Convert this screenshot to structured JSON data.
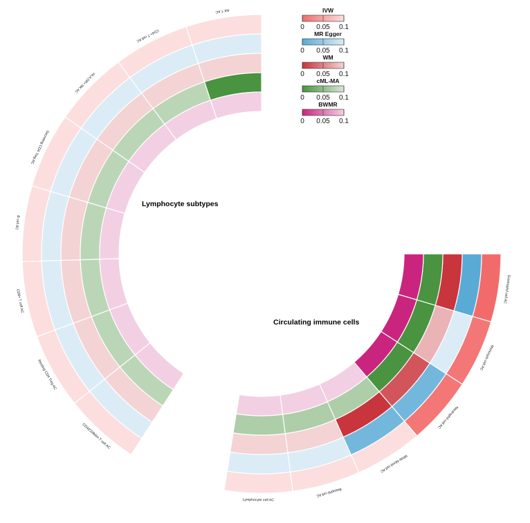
{
  "chart_data": {
    "type": "circular-heatmap",
    "tracks": [
      "IVW",
      "MR Egger",
      "WM",
      "cML-MA",
      "BWMR"
    ],
    "scale": {
      "min": 0,
      "max": 0.1,
      "ticks": [
        "0",
        "0.05",
        "0.1"
      ]
    },
    "colors": {
      "IVW": "#f26b6b",
      "MR Egger": "#5aaad6",
      "WM": "#c8353d",
      "cML-MA": "#4a9340",
      "BWMR": "#c9257e"
    },
    "groups": [
      {
        "name": "Lymphocyte subtypes",
        "cells": [
          "NK T AC",
          "CD4+ T cell AC",
          "HLA DR+ NK AC",
          "Secreting CD4 Treg AC",
          "B cell AC",
          "CD8+ T cell AC",
          "Resting CD4 Treg AC",
          "CD4/CD8dim T cell AC"
        ],
        "p_values": {
          "IVW": [
            0.1,
            0.1,
            0.1,
            0.1,
            0.1,
            0.1,
            0.1,
            0.1
          ],
          "MR Egger": [
            0.1,
            0.1,
            0.1,
            0.1,
            0.1,
            0.1,
            0.1,
            0.1
          ],
          "WM": [
            0.1,
            0.1,
            0.1,
            0.1,
            0.1,
            0.1,
            0.1,
            0.1
          ],
          "cML-MA": [
            0.0,
            0.08,
            0.08,
            0.08,
            0.08,
            0.08,
            0.08,
            0.08
          ],
          "BWMR": [
            0.1,
            0.1,
            0.1,
            0.1,
            0.1,
            0.1,
            0.1,
            0.1
          ]
        }
      },
      {
        "name": "Circulating immune cells",
        "cells": [
          "Eosinophil cell AC",
          "Monocyte cell AC",
          "Neutrophil cell AC",
          "White blood cell AC",
          "Basophil cell AC",
          "Lymphocyte cell AC"
        ],
        "p_values": {
          "IVW": [
            0.0,
            0.01,
            0.01,
            0.1,
            0.1,
            0.1
          ],
          "MR Egger": [
            0.0,
            0.1,
            0.02,
            0.02,
            0.1,
            0.1
          ],
          "WM": [
            0.0,
            0.08,
            0.02,
            0.0,
            0.1,
            0.1
          ],
          "cML-MA": [
            0.0,
            0.0,
            0.0,
            0.07,
            0.07,
            0.07
          ],
          "BWMR": [
            0.0,
            0.0,
            0.0,
            0.1,
            0.1,
            0.1
          ]
        }
      }
    ]
  }
}
